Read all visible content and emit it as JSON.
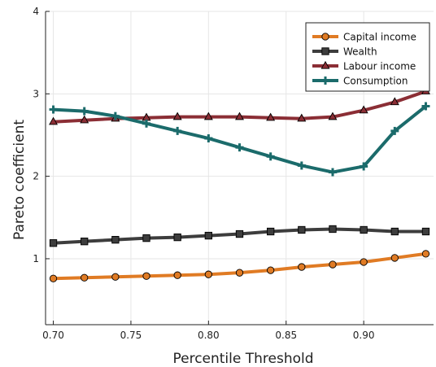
{
  "chart_data": {
    "type": "line",
    "xlabel": "Percentile Threshold",
    "ylabel": "Pareto coefficient",
    "xlim": [
      0.695,
      0.945
    ],
    "ylim": [
      0.2,
      4.0
    ],
    "xticks": [
      "0.70",
      "0.75",
      "0.80",
      "0.85",
      "0.90"
    ],
    "yticks": [
      "1",
      "2",
      "3",
      "4"
    ],
    "grid": true,
    "legend_position": "top-right",
    "x": [
      0.7,
      0.72,
      0.74,
      0.76,
      0.78,
      0.8,
      0.82,
      0.84,
      0.86,
      0.88,
      0.9,
      0.92,
      0.94
    ],
    "series": [
      {
        "name": "Capital income",
        "color": "#e07b24",
        "marker": "circle",
        "values": [
          0.76,
          0.77,
          0.78,
          0.79,
          0.8,
          0.81,
          0.83,
          0.86,
          0.9,
          0.93,
          0.96,
          1.01,
          1.06
        ]
      },
      {
        "name": "Wealth",
        "color": "#3d3d3d",
        "marker": "square",
        "values": [
          1.19,
          1.21,
          1.23,
          1.25,
          1.26,
          1.28,
          1.3,
          1.33,
          1.35,
          1.36,
          1.35,
          1.33,
          1.33
        ]
      },
      {
        "name": "Labour income",
        "color": "#8b2e35",
        "marker": "triangle",
        "values": [
          2.66,
          2.68,
          2.7,
          2.71,
          2.72,
          2.72,
          2.72,
          2.71,
          2.7,
          2.72,
          2.8,
          2.9,
          3.03
        ]
      },
      {
        "name": "Consumption",
        "color": "#1b6b6b",
        "marker": "cross",
        "values": [
          2.81,
          2.79,
          2.73,
          2.64,
          2.55,
          2.46,
          2.35,
          2.24,
          2.13,
          2.05,
          2.12,
          2.55,
          2.85
        ]
      }
    ]
  }
}
